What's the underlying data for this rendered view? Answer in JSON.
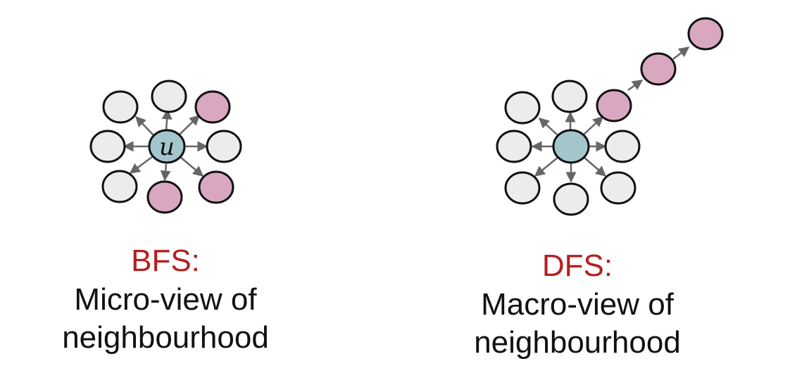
{
  "colors": {
    "background": "#ffffff",
    "center_node": "#a3c6cc",
    "visited_node": "#d9a8c0",
    "plain_node": "#ececec",
    "node_stroke": "#111111",
    "edge": "#666666",
    "heading": "#b51f1f",
    "text": "#111111"
  },
  "bfs": {
    "center_label": "u",
    "heading": "BFS:",
    "line1": "Micro-view of",
    "line2": "neighbourhood"
  },
  "dfs": {
    "heading": "DFS:",
    "line1": "Macro-view of",
    "line2": "neighbourhood"
  }
}
